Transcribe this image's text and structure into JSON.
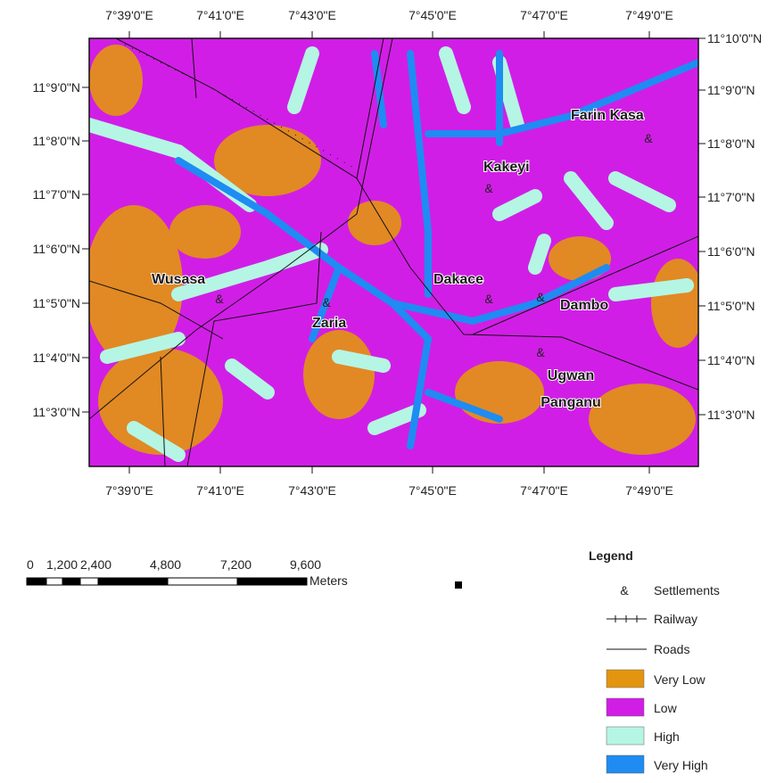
{
  "map": {
    "top_labels": [
      "7°39'0\"E",
      "7°41'0\"E",
      "7°43'0\"E",
      "7°45'0\"E",
      "7°47'0\"E",
      "7°49'0\"E"
    ],
    "bottom_labels": [
      "7°39'0\"E",
      "7°41'0\"E",
      "7°43'0\"E",
      "7°45'0\"E",
      "7°47'0\"E",
      "7°49'0\"E"
    ],
    "left_labels": [
      "11°9'0\"N",
      "11°8'0\"N",
      "11°7'0\"N",
      "11°6'0\"N",
      "11°5'0\"N",
      "11°4'0\"N",
      "11°3'0\"N"
    ],
    "right_labels": [
      "11°10'0\"N",
      "11°9'0\"N",
      "11°8'0\"N",
      "11°7'0\"N",
      "11°6'0\"N",
      "11°5'0\"N",
      "11°4'0\"N",
      "11°3'0\"N"
    ],
    "places": [
      "Farin Kasa",
      "Kakeyi",
      "Wusasa",
      "Dakace",
      "Zaria",
      "Dambo",
      [
        "Ugwan",
        "Panganu"
      ]
    ],
    "settlement_symbol": "&"
  },
  "scale_bar": {
    "labels": [
      "0",
      "1,200",
      "2,400",
      "4,800",
      "7,200",
      "9,600"
    ],
    "unit": "Meters"
  },
  "legend": {
    "title": "Legend",
    "items": [
      {
        "symbol": "&",
        "label": "Settlements"
      },
      {
        "label": "Railway"
      },
      {
        "label": "Roads"
      },
      {
        "label": "Very Low",
        "color": "#e3950f"
      },
      {
        "label": "Low",
        "color": "#d11ee6"
      },
      {
        "label": "High",
        "color": "#b5f5e4"
      },
      {
        "label": "Very High",
        "color": "#1e8cf2"
      }
    ]
  }
}
